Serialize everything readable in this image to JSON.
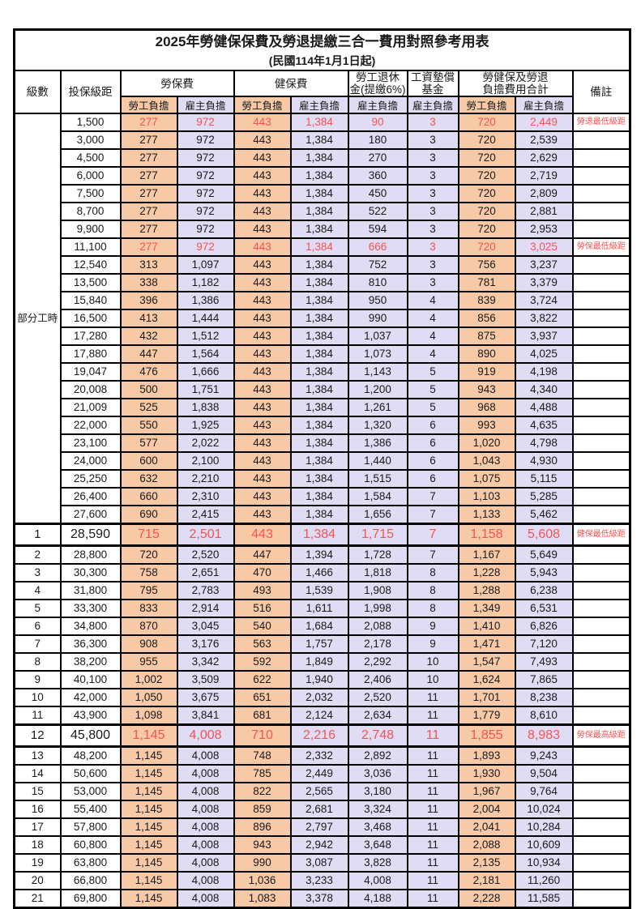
{
  "title": {
    "line1": "2025年勞健保保費及勞退提繳三合一費用對照參考用表",
    "line2": "(民國114年1月1日起)"
  },
  "header": {
    "level": "級數",
    "bracket": "投保級距",
    "labor_fee": "勞保費",
    "health_fee": "健保費",
    "pension_line1": "勞工退休",
    "pension_line2": "金(提繳6%)",
    "wage_fund_line1": "工資墊償",
    "wage_fund_line2": "基金",
    "total_line1": "勞健保及勞退",
    "total_line2": "負擔費用合計",
    "remark": "備註",
    "employee_label": "勞工負擔",
    "employer_label": "雇主負擔"
  },
  "groups": {
    "part_time_label": "部分工時",
    "part_time_rowspan": 23
  },
  "colors": {
    "employee_bg": "#f8c9a6",
    "employer_bg": "#dfdcf3",
    "highlight_text": "#fa5252",
    "border": "#000000"
  },
  "rows": [
    {
      "level": null,
      "bracket": "1,500",
      "values": [
        "277",
        "972",
        "443",
        "1,384",
        "90",
        "3",
        "720",
        "2,449"
      ],
      "remark": "勞退最低級距",
      "highlight": true,
      "emphasis": false
    },
    {
      "level": null,
      "bracket": "3,000",
      "values": [
        "277",
        "972",
        "443",
        "1,384",
        "180",
        "3",
        "720",
        "2,539"
      ],
      "remark": "",
      "highlight": false,
      "emphasis": false
    },
    {
      "level": null,
      "bracket": "4,500",
      "values": [
        "277",
        "972",
        "443",
        "1,384",
        "270",
        "3",
        "720",
        "2,629"
      ],
      "remark": "",
      "highlight": false,
      "emphasis": false
    },
    {
      "level": null,
      "bracket": "6,000",
      "values": [
        "277",
        "972",
        "443",
        "1,384",
        "360",
        "3",
        "720",
        "2,719"
      ],
      "remark": "",
      "highlight": false,
      "emphasis": false
    },
    {
      "level": null,
      "bracket": "7,500",
      "values": [
        "277",
        "972",
        "443",
        "1,384",
        "450",
        "3",
        "720",
        "2,809"
      ],
      "remark": "",
      "highlight": false,
      "emphasis": false
    },
    {
      "level": null,
      "bracket": "8,700",
      "values": [
        "277",
        "972",
        "443",
        "1,384",
        "522",
        "3",
        "720",
        "2,881"
      ],
      "remark": "",
      "highlight": false,
      "emphasis": false
    },
    {
      "level": null,
      "bracket": "9,900",
      "values": [
        "277",
        "972",
        "443",
        "1,384",
        "594",
        "3",
        "720",
        "2,953"
      ],
      "remark": "",
      "highlight": false,
      "emphasis": false
    },
    {
      "level": null,
      "bracket": "11,100",
      "values": [
        "277",
        "972",
        "443",
        "1,384",
        "666",
        "3",
        "720",
        "3,025"
      ],
      "remark": "勞保最低級距",
      "highlight": true,
      "emphasis": false
    },
    {
      "level": null,
      "bracket": "12,540",
      "values": [
        "313",
        "1,097",
        "443",
        "1,384",
        "752",
        "3",
        "756",
        "3,237"
      ],
      "remark": "",
      "highlight": false,
      "emphasis": false
    },
    {
      "level": null,
      "bracket": "13,500",
      "values": [
        "338",
        "1,182",
        "443",
        "1,384",
        "810",
        "3",
        "781",
        "3,379"
      ],
      "remark": "",
      "highlight": false,
      "emphasis": false
    },
    {
      "level": null,
      "bracket": "15,840",
      "values": [
        "396",
        "1,386",
        "443",
        "1,384",
        "950",
        "4",
        "839",
        "3,724"
      ],
      "remark": "",
      "highlight": false,
      "emphasis": false
    },
    {
      "level": null,
      "bracket": "16,500",
      "values": [
        "413",
        "1,444",
        "443",
        "1,384",
        "990",
        "4",
        "856",
        "3,822"
      ],
      "remark": "",
      "highlight": false,
      "emphasis": false
    },
    {
      "level": null,
      "bracket": "17,280",
      "values": [
        "432",
        "1,512",
        "443",
        "1,384",
        "1,037",
        "4",
        "875",
        "3,937"
      ],
      "remark": "",
      "highlight": false,
      "emphasis": false
    },
    {
      "level": null,
      "bracket": "17,880",
      "values": [
        "447",
        "1,564",
        "443",
        "1,384",
        "1,073",
        "4",
        "890",
        "4,025"
      ],
      "remark": "",
      "highlight": false,
      "emphasis": false
    },
    {
      "level": null,
      "bracket": "19,047",
      "values": [
        "476",
        "1,666",
        "443",
        "1,384",
        "1,143",
        "5",
        "919",
        "4,198"
      ],
      "remark": "",
      "highlight": false,
      "emphasis": false
    },
    {
      "level": null,
      "bracket": "20,008",
      "values": [
        "500",
        "1,751",
        "443",
        "1,384",
        "1,200",
        "5",
        "943",
        "4,340"
      ],
      "remark": "",
      "highlight": false,
      "emphasis": false
    },
    {
      "level": null,
      "bracket": "21,009",
      "values": [
        "525",
        "1,838",
        "443",
        "1,384",
        "1,261",
        "5",
        "968",
        "4,488"
      ],
      "remark": "",
      "highlight": false,
      "emphasis": false
    },
    {
      "level": null,
      "bracket": "22,000",
      "values": [
        "550",
        "1,925",
        "443",
        "1,384",
        "1,320",
        "6",
        "993",
        "4,635"
      ],
      "remark": "",
      "highlight": false,
      "emphasis": false
    },
    {
      "level": null,
      "bracket": "23,100",
      "values": [
        "577",
        "2,022",
        "443",
        "1,384",
        "1,386",
        "6",
        "1,020",
        "4,798"
      ],
      "remark": "",
      "highlight": false,
      "emphasis": false
    },
    {
      "level": null,
      "bracket": "24,000",
      "values": [
        "600",
        "2,100",
        "443",
        "1,384",
        "1,440",
        "6",
        "1,043",
        "4,930"
      ],
      "remark": "",
      "highlight": false,
      "emphasis": false
    },
    {
      "level": null,
      "bracket": "25,250",
      "values": [
        "632",
        "2,210",
        "443",
        "1,384",
        "1,515",
        "6",
        "1,075",
        "5,115"
      ],
      "remark": "",
      "highlight": false,
      "emphasis": false
    },
    {
      "level": null,
      "bracket": "26,400",
      "values": [
        "660",
        "2,310",
        "443",
        "1,384",
        "1,584",
        "7",
        "1,103",
        "5,285"
      ],
      "remark": "",
      "highlight": false,
      "emphasis": false
    },
    {
      "level": null,
      "bracket": "27,600",
      "values": [
        "690",
        "2,415",
        "443",
        "1,384",
        "1,656",
        "7",
        "1,133",
        "5,462"
      ],
      "remark": "",
      "highlight": false,
      "emphasis": false
    },
    {
      "level": "1",
      "bracket": "28,590",
      "values": [
        "715",
        "2,501",
        "443",
        "1,384",
        "1,715",
        "7",
        "1,158",
        "5,608"
      ],
      "remark": "健保最低級距",
      "highlight": true,
      "emphasis": true
    },
    {
      "level": "2",
      "bracket": "28,800",
      "values": [
        "720",
        "2,520",
        "447",
        "1,394",
        "1,728",
        "7",
        "1,167",
        "5,649"
      ],
      "remark": "",
      "highlight": false,
      "emphasis": false
    },
    {
      "level": "3",
      "bracket": "30,300",
      "values": [
        "758",
        "2,651",
        "470",
        "1,466",
        "1,818",
        "8",
        "1,228",
        "5,943"
      ],
      "remark": "",
      "highlight": false,
      "emphasis": false
    },
    {
      "level": "4",
      "bracket": "31,800",
      "values": [
        "795",
        "2,783",
        "493",
        "1,539",
        "1,908",
        "8",
        "1,288",
        "6,238"
      ],
      "remark": "",
      "highlight": false,
      "emphasis": false
    },
    {
      "level": "5",
      "bracket": "33,300",
      "values": [
        "833",
        "2,914",
        "516",
        "1,611",
        "1,998",
        "8",
        "1,349",
        "6,531"
      ],
      "remark": "",
      "highlight": false,
      "emphasis": false
    },
    {
      "level": "6",
      "bracket": "34,800",
      "values": [
        "870",
        "3,045",
        "540",
        "1,684",
        "2,088",
        "9",
        "1,410",
        "6,826"
      ],
      "remark": "",
      "highlight": false,
      "emphasis": false
    },
    {
      "level": "7",
      "bracket": "36,300",
      "values": [
        "908",
        "3,176",
        "563",
        "1,757",
        "2,178",
        "9",
        "1,471",
        "7,120"
      ],
      "remark": "",
      "highlight": false,
      "emphasis": false
    },
    {
      "level": "8",
      "bracket": "38,200",
      "values": [
        "955",
        "3,342",
        "592",
        "1,849",
        "2,292",
        "10",
        "1,547",
        "7,493"
      ],
      "remark": "",
      "highlight": false,
      "emphasis": false
    },
    {
      "level": "9",
      "bracket": "40,100",
      "values": [
        "1,002",
        "3,509",
        "622",
        "1,940",
        "2,406",
        "10",
        "1,624",
        "7,865"
      ],
      "remark": "",
      "highlight": false,
      "emphasis": false
    },
    {
      "level": "10",
      "bracket": "42,000",
      "values": [
        "1,050",
        "3,675",
        "651",
        "2,032",
        "2,520",
        "11",
        "1,701",
        "8,238"
      ],
      "remark": "",
      "highlight": false,
      "emphasis": false
    },
    {
      "level": "11",
      "bracket": "43,900",
      "values": [
        "1,098",
        "3,841",
        "681",
        "2,124",
        "2,634",
        "11",
        "1,779",
        "8,610"
      ],
      "remark": "",
      "highlight": false,
      "emphasis": false
    },
    {
      "level": "12",
      "bracket": "45,800",
      "values": [
        "1,145",
        "4,008",
        "710",
        "2,216",
        "2,748",
        "11",
        "1,855",
        "8,983"
      ],
      "remark": "勞保最高級距",
      "highlight": true,
      "emphasis": true
    },
    {
      "level": "13",
      "bracket": "48,200",
      "values": [
        "1,145",
        "4,008",
        "748",
        "2,332",
        "2,892",
        "11",
        "1,893",
        "9,243"
      ],
      "remark": "",
      "highlight": false,
      "emphasis": false
    },
    {
      "level": "14",
      "bracket": "50,600",
      "values": [
        "1,145",
        "4,008",
        "785",
        "2,449",
        "3,036",
        "11",
        "1,930",
        "9,504"
      ],
      "remark": "",
      "highlight": false,
      "emphasis": false
    },
    {
      "level": "15",
      "bracket": "53,000",
      "values": [
        "1,145",
        "4,008",
        "822",
        "2,565",
        "3,180",
        "11",
        "1,967",
        "9,764"
      ],
      "remark": "",
      "highlight": false,
      "emphasis": false
    },
    {
      "level": "16",
      "bracket": "55,400",
      "values": [
        "1,145",
        "4,008",
        "859",
        "2,681",
        "3,324",
        "11",
        "2,004",
        "10,024"
      ],
      "remark": "",
      "highlight": false,
      "emphasis": false
    },
    {
      "level": "17",
      "bracket": "57,800",
      "values": [
        "1,145",
        "4,008",
        "896",
        "2,797",
        "3,468",
        "11",
        "2,041",
        "10,284"
      ],
      "remark": "",
      "highlight": false,
      "emphasis": false
    },
    {
      "level": "18",
      "bracket": "60,800",
      "values": [
        "1,145",
        "4,008",
        "943",
        "2,942",
        "3,648",
        "11",
        "2,088",
        "10,609"
      ],
      "remark": "",
      "highlight": false,
      "emphasis": false
    },
    {
      "level": "19",
      "bracket": "63,800",
      "values": [
        "1,145",
        "4,008",
        "990",
        "3,087",
        "3,828",
        "11",
        "2,135",
        "10,934"
      ],
      "remark": "",
      "highlight": false,
      "emphasis": false
    },
    {
      "level": "20",
      "bracket": "66,800",
      "values": [
        "1,145",
        "4,008",
        "1,036",
        "3,233",
        "4,008",
        "11",
        "2,181",
        "11,260"
      ],
      "remark": "",
      "highlight": false,
      "emphasis": false
    },
    {
      "level": "21",
      "bracket": "69,800",
      "values": [
        "1,145",
        "4,008",
        "1,083",
        "3,378",
        "4,188",
        "11",
        "2,228",
        "11,585"
      ],
      "remark": "",
      "highlight": false,
      "emphasis": false
    }
  ]
}
